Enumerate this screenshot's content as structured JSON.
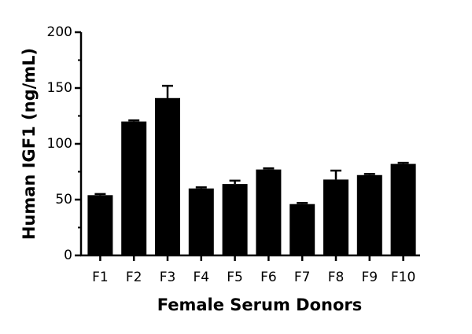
{
  "chart_data": {
    "type": "bar",
    "x_label": "Female Serum Donors",
    "y_label": "Human IGF1 (ng/mL)",
    "categories": [
      "F1",
      "F2",
      "F3",
      "F4",
      "F5",
      "F6",
      "F7",
      "F8",
      "F9",
      "F10"
    ],
    "series": [
      {
        "values": [
          54,
          120,
          141,
          60,
          64,
          77,
          46,
          68,
          72,
          82
        ],
        "errors": [
          1,
          1,
          11,
          1,
          3,
          1,
          1,
          8,
          1,
          1
        ],
        "color": "#000000"
      }
    ],
    "ylim": [
      0,
      200
    ],
    "yticks": [
      0,
      50,
      100,
      150,
      200
    ],
    "yticks_minor": [
      25,
      75,
      125,
      175
    ]
  }
}
